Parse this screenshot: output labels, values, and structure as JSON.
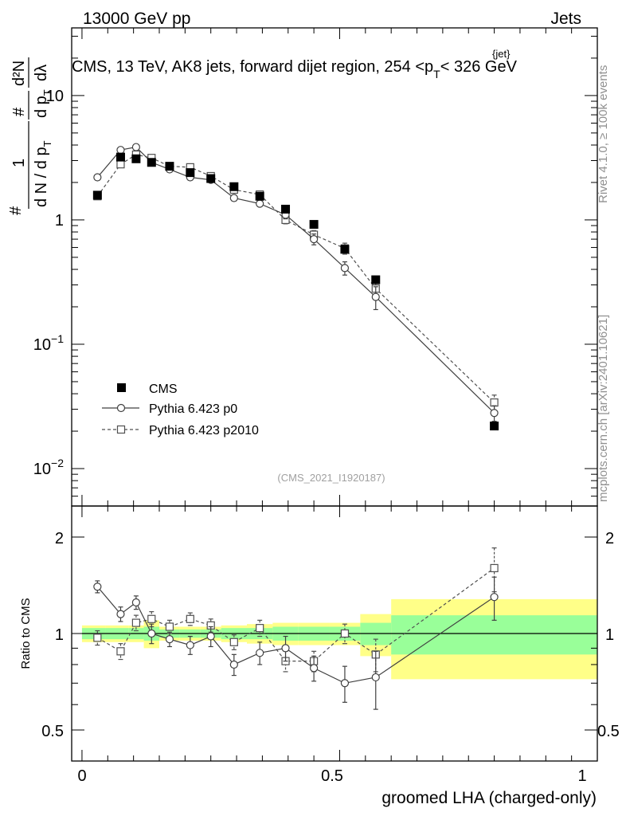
{
  "header": {
    "left": "13000 GeV pp",
    "right": "Jets"
  },
  "top_panel": {
    "title": "CMS, 13 TeV, AK8 jets, forward dijet region, 254 <p",
    "title_sub": "T",
    "title_sup": "{jet}",
    "title_tail": "< 326 GeV",
    "ylabel": {
      "hash": "#",
      "one": "1",
      "dN": "d N / d p",
      "sub_T": "T",
      "frac2_num": "#",
      "frac2_den": "d p",
      "frac3_num": "d²N",
      "frac3_den": "dλ"
    },
    "watermark": "(CMS_2021_I1920187)",
    "yticks": [
      {
        "value": 0.01,
        "label_base": "10",
        "label_exp": "−2"
      },
      {
        "value": 0.1,
        "label_base": "10",
        "label_exp": "−1"
      },
      {
        "value": 1,
        "label_base": "1",
        "label_exp": ""
      },
      {
        "value": 10,
        "label_base": "10",
        "label_exp": ""
      }
    ]
  },
  "side_labels": {
    "rivet": "Rivet 4.1.0, ≥ 100k events",
    "mcplots": "mcplots.cern.ch [arXiv:2401.10621]"
  },
  "ratio_panel": {
    "ylabel": "Ratio to CMS",
    "yticks": [
      "0.5",
      "1",
      "2"
    ]
  },
  "x_axis": {
    "label": "groomed LHA (charged-only)",
    "ticks": [
      "0",
      "0.5",
      "1"
    ]
  },
  "legend": {
    "entries": [
      "CMS",
      "Pythia 6.423 p0",
      "Pythia 6.423 p2010"
    ]
  },
  "colors": {
    "data": "#000000",
    "p0": "#404040",
    "p2010": "#505050",
    "band_green": "#99ff99",
    "band_yellow": "#ffff88"
  },
  "chart_data": {
    "type": "scatter",
    "xlim": [
      -0.02,
      1.0
    ],
    "ylim_top": [
      0.005,
      35
    ],
    "ylim_ratio": [
      0.4,
      2.5
    ],
    "ylog": true,
    "series": [
      {
        "name": "CMS",
        "x": [
          0.03,
          0.075,
          0.105,
          0.135,
          0.17,
          0.21,
          0.25,
          0.295,
          0.345,
          0.395,
          0.45,
          0.51,
          0.57,
          0.8
        ],
        "values": [
          1.58,
          3.2,
          3.1,
          2.9,
          2.7,
          2.4,
          2.15,
          1.85,
          1.55,
          1.22,
          0.92,
          0.58,
          0.33,
          0.022
        ],
        "ratio": [
          1,
          1,
          1,
          1,
          1,
          1,
          1,
          1,
          1,
          1,
          1,
          1,
          1,
          1
        ]
      },
      {
        "name": "Pythia 6.423 p0",
        "x": [
          0.03,
          0.075,
          0.105,
          0.135,
          0.17,
          0.21,
          0.25,
          0.295,
          0.345,
          0.395,
          0.45,
          0.51,
          0.57,
          0.8
        ],
        "values": [
          2.2,
          3.65,
          3.85,
          2.9,
          2.55,
          2.2,
          2.1,
          1.5,
          1.35,
          1.1,
          0.7,
          0.41,
          0.24,
          0.028
        ],
        "errors": [
          0.08,
          0.15,
          0.17,
          0.14,
          0.1,
          0.1,
          0.09,
          0.08,
          0.07,
          0.08,
          0.07,
          0.05,
          0.05,
          0.004
        ],
        "ratio": [
          1.4,
          1.15,
          1.25,
          1.0,
          0.96,
          0.92,
          0.98,
          0.8,
          0.87,
          0.9,
          0.78,
          0.7,
          0.73,
          1.3
        ],
        "ratio_errors": [
          0.06,
          0.06,
          0.06,
          0.07,
          0.05,
          0.06,
          0.07,
          0.06,
          0.07,
          0.08,
          0.07,
          0.09,
          0.15,
          0.2
        ]
      },
      {
        "name": "Pythia 6.423 p2010",
        "x": [
          0.03,
          0.075,
          0.105,
          0.135,
          0.17,
          0.21,
          0.25,
          0.295,
          0.345,
          0.395,
          0.45,
          0.51,
          0.57,
          0.8
        ],
        "values": [
          1.55,
          2.8,
          3.35,
          3.15,
          2.7,
          2.65,
          2.25,
          1.75,
          1.6,
          1.0,
          0.76,
          0.59,
          0.28,
          0.034
        ],
        "errors": [
          0.08,
          0.13,
          0.15,
          0.14,
          0.12,
          0.11,
          0.1,
          0.09,
          0.08,
          0.07,
          0.06,
          0.06,
          0.05,
          0.005
        ],
        "ratio": [
          0.97,
          0.88,
          1.08,
          1.11,
          1.05,
          1.11,
          1.06,
          0.94,
          1.04,
          0.82,
          0.82,
          1.0,
          0.86,
          1.6
        ],
        "ratio_errors": [
          0.05,
          0.05,
          0.06,
          0.06,
          0.05,
          0.05,
          0.05,
          0.05,
          0.06,
          0.06,
          0.06,
          0.07,
          0.1,
          0.25
        ]
      }
    ],
    "cms_bands": {
      "edges": [
        0.0,
        0.045,
        0.09,
        0.12,
        0.15,
        0.19,
        0.23,
        0.27,
        0.32,
        0.37,
        0.42,
        0.48,
        0.54,
        0.6,
        1.0
      ],
      "green": [
        0.04,
        0.04,
        0.04,
        0.05,
        0.03,
        0.03,
        0.03,
        0.04,
        0.04,
        0.05,
        0.05,
        0.05,
        0.08,
        0.14
      ],
      "yellow": [
        0.06,
        0.06,
        0.06,
        0.1,
        0.05,
        0.05,
        0.05,
        0.06,
        0.07,
        0.08,
        0.08,
        0.08,
        0.15,
        0.28
      ]
    }
  }
}
